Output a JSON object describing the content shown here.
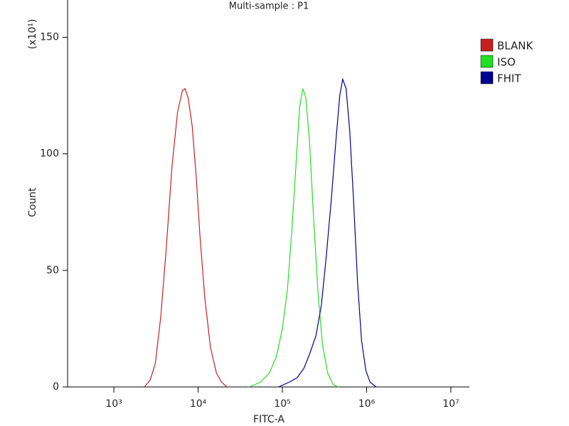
{
  "chart_data": {
    "type": "line",
    "title": "Multi-sample : P1",
    "xlabel": "FITC-A",
    "ylabel": "Count",
    "yunit": "(x10¹)",
    "xscale": "log",
    "xlim": [
      282,
      16600000
    ],
    "ylim": [
      0,
      166
    ],
    "xticks": [
      {
        "value": 1000,
        "label": "10³"
      },
      {
        "value": 10000,
        "label": "10⁴"
      },
      {
        "value": 100000,
        "label": "10⁵"
      },
      {
        "value": 1000000,
        "label": "10⁶"
      },
      {
        "value": 10000000,
        "label": "10⁷"
      }
    ],
    "yticks": [
      0,
      50,
      100,
      150
    ],
    "grid": false,
    "legend": "right",
    "series": [
      {
        "name": "BLANK",
        "color": "#c62020",
        "x": [
          2300,
          2700,
          3100,
          3600,
          4200,
          4900,
          5700,
          6500,
          7000,
          7600,
          8500,
          9500,
          10500,
          12000,
          14000,
          16500,
          19000,
          22000
        ],
        "values": [
          0,
          3,
          10,
          30,
          60,
          95,
          118,
          127,
          128,
          124,
          112,
          90,
          65,
          38,
          17,
          6,
          2,
          0
        ]
      },
      {
        "name": "ISO",
        "color": "#22dd22",
        "x": [
          40000,
          55000,
          70000,
          85000,
          100000,
          115000,
          130000,
          145000,
          160000,
          175000,
          190000,
          210000,
          235000,
          265000,
          300000,
          345000,
          400000,
          460000
        ],
        "values": [
          0,
          2,
          6,
          13,
          25,
          42,
          68,
          95,
          120,
          128,
          124,
          105,
          72,
          40,
          18,
          6,
          1,
          0
        ]
      },
      {
        "name": "FHIT",
        "color": "#000090",
        "x": [
          90000,
          120000,
          150000,
          180000,
          210000,
          250000,
          290000,
          330000,
          380000,
          430000,
          480000,
          520000,
          570000,
          630000,
          700000,
          780000,
          870000,
          980000,
          1100000,
          1300000
        ],
        "values": [
          0,
          2,
          4,
          8,
          14,
          22,
          35,
          55,
          80,
          105,
          125,
          132,
          128,
          110,
          80,
          45,
          20,
          7,
          2,
          0
        ]
      }
    ]
  }
}
